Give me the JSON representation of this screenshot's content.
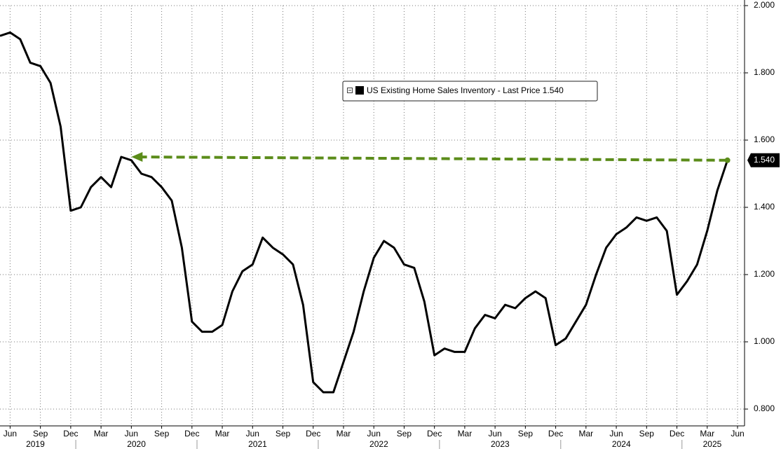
{
  "chart_data": {
    "type": "line",
    "x": [
      "2019-05",
      "2019-06",
      "2019-07",
      "2019-08",
      "2019-09",
      "2019-10",
      "2019-11",
      "2019-12",
      "2020-01",
      "2020-02",
      "2020-03",
      "2020-04",
      "2020-05",
      "2020-06",
      "2020-07",
      "2020-08",
      "2020-09",
      "2020-10",
      "2020-11",
      "2020-12",
      "2021-01",
      "2021-02",
      "2021-03",
      "2021-04",
      "2021-05",
      "2021-06",
      "2021-07",
      "2021-08",
      "2021-09",
      "2021-10",
      "2021-11",
      "2021-12",
      "2022-01",
      "2022-02",
      "2022-03",
      "2022-04",
      "2022-05",
      "2022-06",
      "2022-07",
      "2022-08",
      "2022-09",
      "2022-10",
      "2022-11",
      "2022-12",
      "2023-01",
      "2023-02",
      "2023-03",
      "2023-04",
      "2023-05",
      "2023-06",
      "2023-07",
      "2023-08",
      "2023-09",
      "2023-10",
      "2023-11",
      "2023-12",
      "2024-01",
      "2024-02",
      "2024-03",
      "2024-04",
      "2024-05",
      "2024-06",
      "2024-07",
      "2024-08",
      "2024-09",
      "2024-10",
      "2024-11",
      "2024-12",
      "2025-01",
      "2025-02",
      "2025-03",
      "2025-04",
      "2025-05"
    ],
    "series": [
      {
        "name": "US Existing Home Sales Inventory - Last Price 1.540",
        "color": "#000000",
        "values": [
          1.91,
          1.92,
          1.9,
          1.83,
          1.82,
          1.77,
          1.64,
          1.39,
          1.4,
          1.46,
          1.49,
          1.46,
          1.55,
          1.54,
          1.5,
          1.49,
          1.46,
          1.42,
          1.28,
          1.06,
          1.03,
          1.03,
          1.05,
          1.15,
          1.21,
          1.23,
          1.31,
          1.28,
          1.26,
          1.23,
          1.11,
          0.88,
          0.85,
          0.85,
          0.94,
          1.03,
          1.15,
          1.25,
          1.3,
          1.28,
          1.23,
          1.22,
          1.12,
          0.96,
          0.98,
          0.97,
          0.97,
          1.04,
          1.08,
          1.07,
          1.11,
          1.1,
          1.13,
          1.15,
          1.13,
          0.99,
          1.01,
          1.06,
          1.11,
          1.2,
          1.28,
          1.32,
          1.34,
          1.37,
          1.36,
          1.37,
          1.33,
          1.14,
          1.18,
          1.23,
          1.33,
          1.45,
          1.54
        ]
      }
    ],
    "xlim": [
      "2019-05",
      "2025-06"
    ],
    "xticks": [
      {
        "value": "2019-06",
        "label": "Jun"
      },
      {
        "value": "2019-09",
        "label": "Sep"
      },
      {
        "value": "2019-12",
        "label": "Dec"
      },
      {
        "value": "2020-03",
        "label": "Mar"
      },
      {
        "value": "2020-06",
        "label": "Jun"
      },
      {
        "value": "2020-09",
        "label": "Sep"
      },
      {
        "value": "2020-12",
        "label": "Dec"
      },
      {
        "value": "2021-03",
        "label": "Mar"
      },
      {
        "value": "2021-06",
        "label": "Jun"
      },
      {
        "value": "2021-09",
        "label": "Sep"
      },
      {
        "value": "2021-12",
        "label": "Dec"
      },
      {
        "value": "2022-03",
        "label": "Mar"
      },
      {
        "value": "2022-06",
        "label": "Jun"
      },
      {
        "value": "2022-09",
        "label": "Sep"
      },
      {
        "value": "2022-12",
        "label": "Dec"
      },
      {
        "value": "2023-03",
        "label": "Mar"
      },
      {
        "value": "2023-06",
        "label": "Jun"
      },
      {
        "value": "2023-09",
        "label": "Sep"
      },
      {
        "value": "2023-12",
        "label": "Dec"
      },
      {
        "value": "2024-03",
        "label": "Mar"
      },
      {
        "value": "2024-06",
        "label": "Jun"
      },
      {
        "value": "2024-09",
        "label": "Sep"
      },
      {
        "value": "2024-12",
        "label": "Dec"
      },
      {
        "value": "2025-03",
        "label": "Mar"
      },
      {
        "value": "2025-06",
        "label": "Jun"
      }
    ],
    "year_labels": [
      "2019",
      "2020",
      "2021",
      "2022",
      "2023",
      "2024",
      "2025"
    ],
    "ylim": [
      0.75,
      2.0
    ],
    "yticks": [
      {
        "value": 0.8,
        "label": "0.800"
      },
      {
        "value": 1.0,
        "label": "1.000"
      },
      {
        "value": 1.2,
        "label": "1.200"
      },
      {
        "value": 1.4,
        "label": "1.400"
      },
      {
        "value": 1.6,
        "label": "1.600"
      },
      {
        "value": 1.8,
        "label": "1.800"
      },
      {
        "value": 2.0,
        "label": "2.000"
      }
    ],
    "last_price": {
      "value": 1.54,
      "label": "1.540"
    },
    "annotation": {
      "color": "#5b8c1a",
      "from": {
        "x": "2025-05",
        "y": 1.54
      },
      "to": {
        "x": "2020-06",
        "y": 1.55
      }
    },
    "grid": true
  }
}
